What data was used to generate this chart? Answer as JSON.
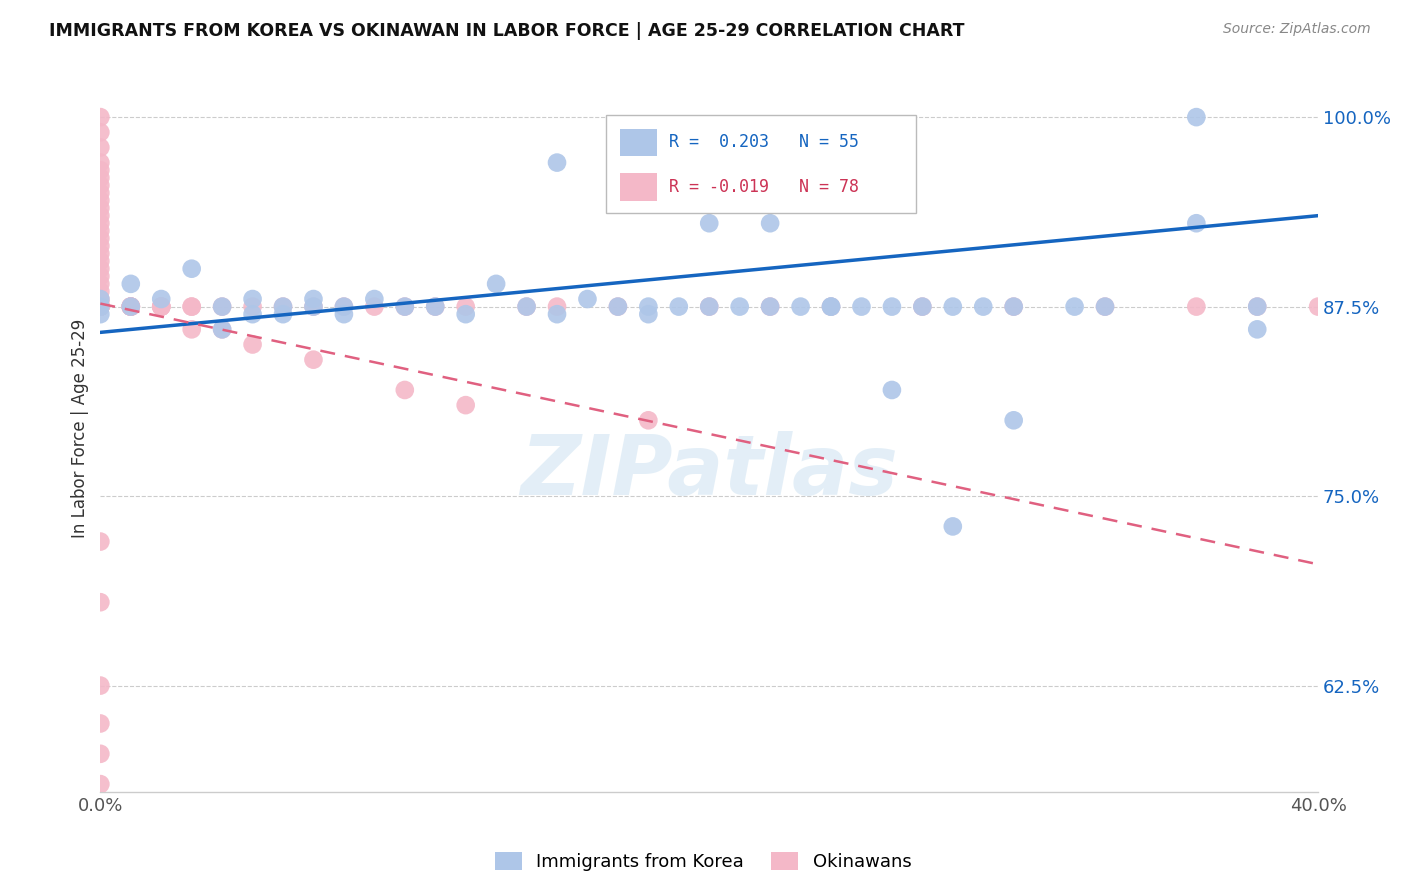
{
  "title": "IMMIGRANTS FROM KOREA VS OKINAWAN IN LABOR FORCE | AGE 25-29 CORRELATION CHART",
  "source": "Source: ZipAtlas.com",
  "ylabel": "In Labor Force | Age 25-29",
  "watermark": "ZIPatlas",
  "xlim": [
    0.0,
    0.4
  ],
  "ylim": [
    0.555,
    1.035
  ],
  "xtick_positions": [
    0.0,
    0.08,
    0.16,
    0.24,
    0.32,
    0.4
  ],
  "xtick_labels": [
    "0.0%",
    "",
    "",
    "",
    "",
    "40.0%"
  ],
  "ytick_labels_right": [
    "100.0%",
    "87.5%",
    "75.0%",
    "62.5%"
  ],
  "ytick_vals_right": [
    1.0,
    0.875,
    0.75,
    0.625
  ],
  "color_korea": "#aec6e8",
  "color_okinawan": "#f4b8c8",
  "color_line_korea": "#1565c0",
  "color_line_okinawan": "#e06080",
  "background_color": "#ffffff",
  "grid_color": "#cccccc",
  "korea_line_x": [
    0.0,
    0.4
  ],
  "korea_line_y": [
    0.858,
    0.935
  ],
  "okinawan_line_x": [
    0.0,
    0.4
  ],
  "okinawan_line_y": [
    0.877,
    0.705
  ],
  "korea_x": [
    0.0,
    0.0,
    0.0,
    0.01,
    0.01,
    0.02,
    0.03,
    0.04,
    0.04,
    0.05,
    0.05,
    0.06,
    0.06,
    0.07,
    0.07,
    0.08,
    0.08,
    0.09,
    0.1,
    0.11,
    0.12,
    0.13,
    0.14,
    0.15,
    0.15,
    0.16,
    0.17,
    0.18,
    0.18,
    0.19,
    0.2,
    0.2,
    0.21,
    0.22,
    0.22,
    0.23,
    0.24,
    0.25,
    0.25,
    0.26,
    0.27,
    0.28,
    0.29,
    0.3,
    0.22,
    0.24,
    0.26,
    0.28,
    0.3,
    0.32,
    0.33,
    0.36,
    0.38,
    0.38,
    0.36
  ],
  "korea_y": [
    0.875,
    0.88,
    0.87,
    0.89,
    0.875,
    0.88,
    0.9,
    0.875,
    0.86,
    0.87,
    0.88,
    0.875,
    0.87,
    0.875,
    0.88,
    0.875,
    0.87,
    0.88,
    0.875,
    0.875,
    0.87,
    0.89,
    0.875,
    0.97,
    0.87,
    0.88,
    0.875,
    0.875,
    0.87,
    0.875,
    0.875,
    0.93,
    0.875,
    0.875,
    0.95,
    0.875,
    0.875,
    0.875,
    0.97,
    0.875,
    0.875,
    0.875,
    0.875,
    0.875,
    0.93,
    0.875,
    0.82,
    0.73,
    0.8,
    0.875,
    0.875,
    1.0,
    0.86,
    0.875,
    0.93
  ],
  "okinawan_x": [
    0.0,
    0.0,
    0.0,
    0.0,
    0.0,
    0.0,
    0.0,
    0.0,
    0.0,
    0.0,
    0.0,
    0.0,
    0.0,
    0.0,
    0.0,
    0.0,
    0.0,
    0.0,
    0.0,
    0.0,
    0.0,
    0.0,
    0.0,
    0.0,
    0.0,
    0.0,
    0.0,
    0.0,
    0.0,
    0.0,
    0.0,
    0.0,
    0.0,
    0.0,
    0.0,
    0.0,
    0.0,
    0.0,
    0.0,
    0.0,
    0.01,
    0.01,
    0.01,
    0.01,
    0.01,
    0.02,
    0.02,
    0.02,
    0.02,
    0.03,
    0.03,
    0.04,
    0.04,
    0.05,
    0.06,
    0.07,
    0.08,
    0.09,
    0.1,
    0.11,
    0.12,
    0.14,
    0.15,
    0.17,
    0.18,
    0.2,
    0.22,
    0.24,
    0.27,
    0.3,
    0.33,
    0.36,
    0.38,
    0.4,
    0.03,
    0.05,
    0.07,
    0.1,
    0.12
  ],
  "okinawan_y": [
    1.0,
    0.99,
    0.98,
    0.97,
    0.965,
    0.96,
    0.955,
    0.95,
    0.945,
    0.94,
    0.935,
    0.93,
    0.925,
    0.92,
    0.915,
    0.91,
    0.905,
    0.9,
    0.895,
    0.89,
    0.885,
    0.88,
    0.878,
    0.875,
    0.875,
    0.875,
    0.875,
    0.875,
    0.875,
    0.875,
    0.875,
    0.875,
    0.875,
    0.875,
    0.72,
    0.68,
    0.625,
    0.6,
    0.58,
    0.56,
    0.875,
    0.875,
    0.875,
    0.875,
    0.875,
    0.875,
    0.875,
    0.875,
    0.875,
    0.875,
    0.875,
    0.875,
    0.86,
    0.875,
    0.875,
    0.875,
    0.875,
    0.875,
    0.875,
    0.875,
    0.875,
    0.875,
    0.875,
    0.875,
    0.8,
    0.875,
    0.875,
    0.875,
    0.875,
    0.875,
    0.875,
    0.875,
    0.875,
    0.875,
    0.86,
    0.85,
    0.84,
    0.82,
    0.81
  ]
}
